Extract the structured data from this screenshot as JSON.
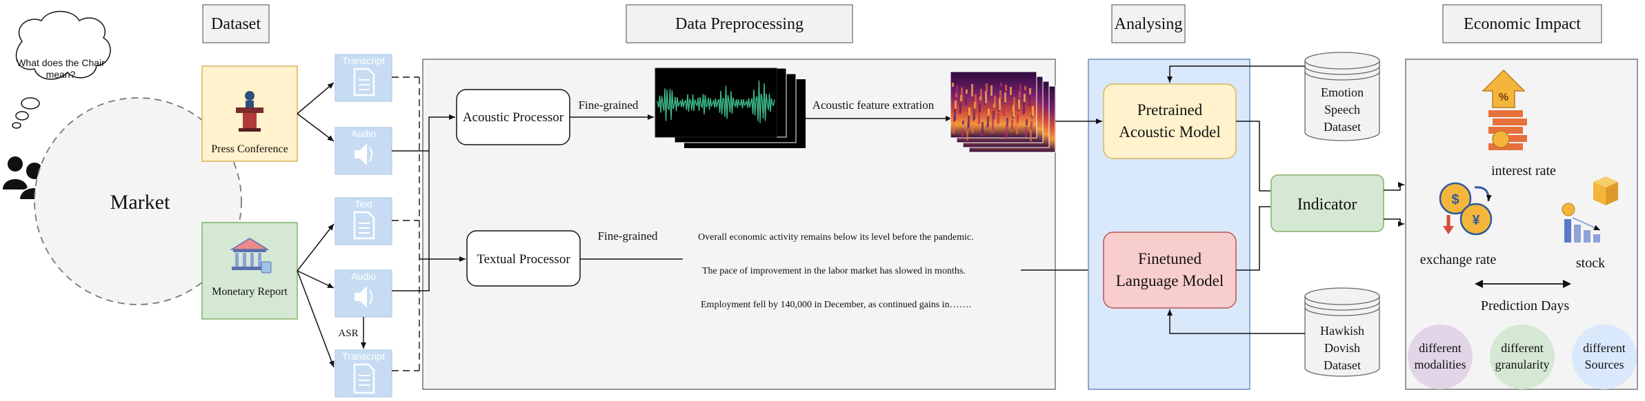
{
  "thought_bubble": "What does the Chair mean?",
  "market_label": "Market",
  "sections": {
    "dataset": "Dataset",
    "preprocessing": "Data Preprocessing",
    "analysing": "Analysing",
    "impact": "Economic Impact"
  },
  "sources": {
    "press_conference": "Press Conference",
    "monetary_report": "Monetary Report"
  },
  "docs": {
    "transcript": "Transcript",
    "audio": "Audio",
    "text": "Text",
    "audio2": "Audio",
    "transcript2": "Transcript"
  },
  "asr_label": "ASR",
  "processors": {
    "acoustic": "Acoustic Processor",
    "textual": "Textual Processor"
  },
  "edge_labels": {
    "fine_grained_top": "Fine-grained",
    "fine_grained_bottom": "Fine-grained",
    "acoustic_extraction": "Acoustic feature extration"
  },
  "sentences": [
    "Overall economic activity remains below its level before the pandemic.",
    "The pace of improvement in the labor market has slowed in months.",
    "Employment fell by 140,000 in December, as continued gains in……."
  ],
  "models": {
    "acoustic_line1": "Pretrained",
    "acoustic_line2": "Acoustic Model",
    "language_line1": "Finetuned",
    "language_line2": "Language Model"
  },
  "datasets": {
    "emotion": [
      "Emotion",
      "Speech",
      "Dataset"
    ],
    "hawkish": [
      "Hawkish",
      "Dovish",
      "Dataset"
    ]
  },
  "indicator": "Indicator",
  "impact": {
    "interest_rate": "interest rate",
    "exchange_rate": "exchange rate",
    "stock": "stock",
    "prediction_days": "Prediction Days",
    "circles": [
      [
        "different",
        "modalities"
      ],
      [
        "different",
        "granularity"
      ],
      [
        "different",
        "Sources"
      ]
    ]
  },
  "colors": {
    "press_fill": "#fff2cc",
    "press_stroke": "#d6b656",
    "report_fill": "#d5e8d4",
    "report_stroke": "#82b366",
    "doc_fill": "#c7dcf3",
    "analysing_fill": "#dae8fc",
    "pretrained_fill": "#fff2cc",
    "finetuned_fill": "#f8cecc",
    "indicator_fill": "#d5e8d4",
    "circle_purple": "#e1d5e7",
    "circle_green": "#d5e8d4",
    "circle_blue": "#dae8fc",
    "waveform": "#3dbb8a"
  }
}
